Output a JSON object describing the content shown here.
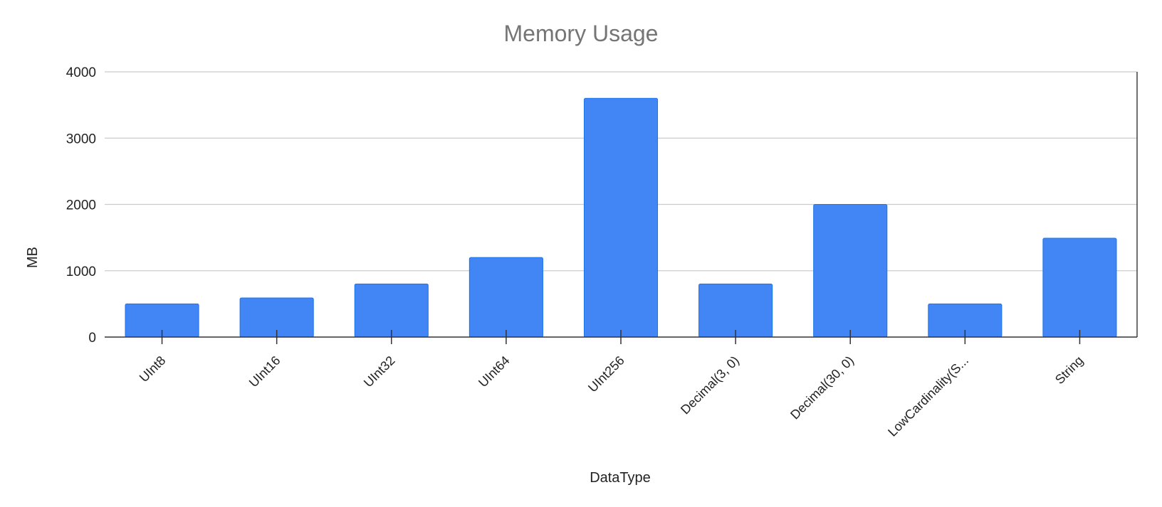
{
  "chart_data": {
    "type": "bar",
    "title": "Memory Usage",
    "xlabel": "DataType",
    "ylabel": "MB",
    "categories": [
      "UInt8",
      "UInt16",
      "UInt32",
      "UInt64",
      "UInt256",
      "Decimal(3, 0)",
      "Decimal(30, 0)",
      "LowCardinality(S...",
      "String"
    ],
    "values": [
      500,
      590,
      800,
      1200,
      3600,
      800,
      2000,
      500,
      1490
    ],
    "ylim": [
      0,
      4000
    ],
    "yticks": [
      0,
      1000,
      2000,
      3000,
      4000
    ],
    "grid": true,
    "legend": "none",
    "colors": {
      "bar": "#4285f4",
      "bar_edge": "#1a73e8",
      "grid": "#cccccc",
      "axis": "#333333",
      "title": "#757575"
    }
  }
}
